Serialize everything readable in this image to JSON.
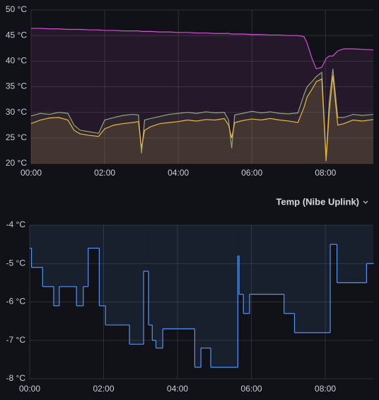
{
  "chart_data": [
    {
      "type": "line",
      "grid": true,
      "fill": true,
      "xlim": [
        0,
        558
      ],
      "xticks": [
        {
          "value": 0,
          "label": "00:00"
        },
        {
          "value": 120,
          "label": "02:00"
        },
        {
          "value": 240,
          "label": "04:00"
        },
        {
          "value": 360,
          "label": "06:00"
        },
        {
          "value": 480,
          "label": "08:00"
        }
      ],
      "ylim": [
        20,
        50
      ],
      "yticks": [
        {
          "value": 50,
          "label": "50 °C"
        },
        {
          "value": 45,
          "label": "45 °C"
        },
        {
          "value": 40,
          "label": "40 °C"
        },
        {
          "value": 35,
          "label": "35 °C"
        },
        {
          "value": 30,
          "label": "30 °C"
        },
        {
          "value": 25,
          "label": "25 °C"
        },
        {
          "value": 20,
          "label": "20 °C"
        }
      ],
      "x": [
        0,
        15,
        30,
        45,
        60,
        70,
        80,
        95,
        110,
        120,
        135,
        150,
        165,
        175,
        180,
        185,
        195,
        210,
        225,
        240,
        255,
        270,
        285,
        300,
        315,
        322,
        327,
        332,
        345,
        360,
        375,
        390,
        405,
        420,
        435,
        445,
        450,
        458,
        465,
        474,
        481,
        486,
        492,
        500,
        510,
        525,
        540,
        558
      ],
      "series": [
        {
          "color": "#d44fd4",
          "values": [
            46.4,
            46.4,
            46.3,
            46.3,
            46.2,
            46.2,
            46.2,
            46.1,
            46.1,
            46.0,
            46.0,
            45.9,
            45.9,
            45.9,
            45.8,
            45.8,
            45.8,
            45.7,
            45.7,
            45.6,
            45.6,
            45.5,
            45.5,
            45.4,
            45.4,
            45.4,
            45.3,
            45.3,
            45.3,
            45.2,
            45.2,
            45.1,
            45.1,
            45.0,
            45.0,
            44.8,
            43.5,
            40.5,
            38.5,
            38.8,
            40.5,
            41.0,
            41.0,
            42.0,
            42.4,
            42.4,
            42.3,
            42.2
          ]
        },
        {
          "color": "#8fa77a",
          "values": [
            29.3,
            29.8,
            29.6,
            30.0,
            29.8,
            27.5,
            26.5,
            26.2,
            25.9,
            28.5,
            29.0,
            29.4,
            29.6,
            29.5,
            22.0,
            28.5,
            28.8,
            29.2,
            29.6,
            29.8,
            30.0,
            29.8,
            30.1,
            29.9,
            30.0,
            28.5,
            23.0,
            29.5,
            29.8,
            30.2,
            29.9,
            30.1,
            29.8,
            29.7,
            29.9,
            33.5,
            35.0,
            36.0,
            37.0,
            37.8,
            21.0,
            32.0,
            38.5,
            29.0,
            29.0,
            29.6,
            29.4,
            29.6
          ]
        },
        {
          "color": "#eab839",
          "values": [
            27.8,
            28.5,
            28.9,
            29.0,
            28.5,
            26.5,
            25.8,
            25.5,
            25.3,
            26.8,
            27.5,
            27.8,
            28.0,
            28.2,
            23.0,
            26.5,
            27.2,
            27.8,
            28.0,
            28.2,
            28.5,
            28.3,
            28.6,
            28.5,
            28.8,
            27.5,
            25.0,
            28.0,
            28.4,
            28.7,
            28.5,
            28.8,
            28.5,
            28.3,
            28.0,
            31.0,
            33.0,
            34.5,
            36.0,
            36.5,
            20.5,
            30.0,
            37.2,
            27.5,
            27.8,
            28.5,
            28.3,
            28.6
          ]
        }
      ]
    },
    {
      "type": "line",
      "step": true,
      "grid": true,
      "fill": true,
      "title": "Temp (Nibe Uplink)",
      "xlim": [
        0,
        558
      ],
      "xticks": [
        {
          "value": 0,
          "label": "00:00"
        },
        {
          "value": 120,
          "label": "02:00"
        },
        {
          "value": 240,
          "label": "04:00"
        },
        {
          "value": 360,
          "label": "06:00"
        },
        {
          "value": 480,
          "label": "08:00"
        }
      ],
      "ylim": [
        -8,
        -4
      ],
      "yticks": [
        {
          "value": -4,
          "label": "-4 °C"
        },
        {
          "value": -5,
          "label": "-5 °C"
        },
        {
          "value": -6,
          "label": "-6 °C"
        },
        {
          "value": -7,
          "label": "-7 °C"
        },
        {
          "value": -8,
          "label": "-8 °C"
        }
      ],
      "x": [
        0,
        3,
        21,
        39,
        48,
        76,
        87,
        95,
        113,
        123,
        162,
        185,
        193,
        199,
        205,
        216,
        268,
        278,
        294,
        338,
        340,
        347,
        357,
        413,
        430,
        488,
        499,
        547,
        558
      ],
      "series": [
        {
          "color": "#5794f2",
          "values": [
            -4.6,
            -5.1,
            -5.6,
            -6.1,
            -5.6,
            -6.1,
            -5.6,
            -4.6,
            -6.1,
            -6.6,
            -7.1,
            -5.2,
            -6.6,
            -7.0,
            -7.2,
            -6.7,
            -7.7,
            -7.2,
            -7.7,
            -4.8,
            -5.8,
            -6.3,
            -5.8,
            -6.3,
            -6.8,
            -4.5,
            -5.5,
            -5.0,
            -5.0
          ]
        }
      ]
    }
  ]
}
